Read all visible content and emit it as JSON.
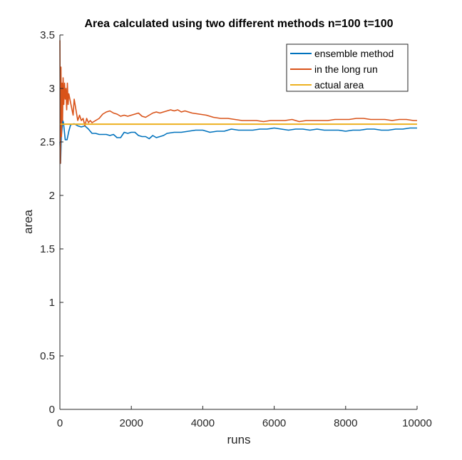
{
  "chart_data": {
    "type": "line",
    "title": "Area calculated using two different methods n=100  t=100",
    "xlabel": "runs",
    "ylabel": "area",
    "xlim": [
      0,
      10000
    ],
    "ylim": [
      0,
      3.5
    ],
    "xticks": [
      0,
      2000,
      4000,
      6000,
      8000,
      10000
    ],
    "xtick_labels": [
      "0",
      "2000",
      "4000",
      "6000",
      "8000",
      "10000"
    ],
    "yticks": [
      0,
      0.5,
      1,
      1.5,
      2,
      2.5,
      3,
      3.5
    ],
    "ytick_labels": [
      "0",
      "0.5",
      "1",
      "1.5",
      "2",
      "2.5",
      "3",
      "3.5"
    ],
    "grid": false,
    "legend_position": "top-right",
    "series": [
      {
        "name": "ensemble method",
        "color": "#0072BD",
        "x": [
          1,
          20,
          40,
          60,
          80,
          100,
          150,
          200,
          250,
          300,
          400,
          500,
          600,
          700,
          800,
          900,
          1000,
          1100,
          1200,
          1300,
          1400,
          1500,
          1600,
          1700,
          1800,
          1900,
          2000,
          2100,
          2200,
          2300,
          2400,
          2500,
          2600,
          2700,
          2800,
          2900,
          3000,
          3200,
          3400,
          3600,
          3800,
          4000,
          4200,
          4400,
          4600,
          4800,
          5000,
          5200,
          5400,
          5600,
          5800,
          6000,
          6200,
          6400,
          6600,
          6800,
          7000,
          7200,
          7400,
          7600,
          7800,
          8000,
          8200,
          8400,
          8600,
          8800,
          9000,
          9200,
          9400,
          9600,
          9800,
          10000
        ],
        "y": [
          2.5,
          2.3,
          2.55,
          2.62,
          2.7,
          2.68,
          2.52,
          2.52,
          2.6,
          2.66,
          2.67,
          2.65,
          2.64,
          2.65,
          2.62,
          2.58,
          2.58,
          2.57,
          2.57,
          2.57,
          2.56,
          2.57,
          2.54,
          2.54,
          2.59,
          2.58,
          2.59,
          2.59,
          2.56,
          2.55,
          2.55,
          2.53,
          2.56,
          2.54,
          2.55,
          2.56,
          2.58,
          2.59,
          2.59,
          2.6,
          2.61,
          2.61,
          2.59,
          2.6,
          2.6,
          2.62,
          2.61,
          2.61,
          2.61,
          2.62,
          2.62,
          2.63,
          2.62,
          2.61,
          2.62,
          2.62,
          2.61,
          2.62,
          2.61,
          2.61,
          2.61,
          2.6,
          2.61,
          2.61,
          2.62,
          2.62,
          2.61,
          2.61,
          2.62,
          2.62,
          2.63,
          2.63
        ]
      },
      {
        "name": "in the long run",
        "color": "#D95319",
        "x": [
          1,
          15,
          30,
          45,
          60,
          75,
          90,
          110,
          130,
          150,
          170,
          190,
          210,
          230,
          250,
          280,
          310,
          340,
          370,
          400,
          450,
          500,
          550,
          600,
          650,
          700,
          750,
          800,
          850,
          900,
          1000,
          1100,
          1200,
          1300,
          1400,
          1500,
          1600,
          1700,
          1800,
          1900,
          2000,
          2100,
          2200,
          2300,
          2400,
          2500,
          2600,
          2700,
          2800,
          2900,
          3000,
          3100,
          3200,
          3300,
          3400,
          3500,
          3700,
          3900,
          4100,
          4300,
          4500,
          4700,
          4900,
          5100,
          5300,
          5500,
          5700,
          5900,
          6100,
          6300,
          6500,
          6700,
          6900,
          7100,
          7300,
          7500,
          7700,
          7900,
          8100,
          8300,
          8500,
          8700,
          8900,
          9100,
          9300,
          9500,
          9700,
          9900,
          10000
        ],
        "y": [
          3.45,
          2.3,
          3.2,
          2.55,
          3.05,
          2.7,
          3.1,
          2.85,
          3.05,
          2.9,
          3.0,
          2.8,
          3.05,
          2.85,
          2.95,
          2.9,
          2.85,
          2.8,
          2.75,
          2.9,
          2.8,
          2.7,
          2.75,
          2.7,
          2.72,
          2.65,
          2.72,
          2.68,
          2.7,
          2.68,
          2.7,
          2.72,
          2.76,
          2.78,
          2.79,
          2.77,
          2.76,
          2.74,
          2.75,
          2.74,
          2.75,
          2.76,
          2.77,
          2.74,
          2.73,
          2.75,
          2.77,
          2.78,
          2.77,
          2.78,
          2.79,
          2.8,
          2.79,
          2.8,
          2.78,
          2.79,
          2.77,
          2.76,
          2.75,
          2.73,
          2.72,
          2.72,
          2.71,
          2.7,
          2.7,
          2.7,
          2.69,
          2.7,
          2.7,
          2.7,
          2.71,
          2.69,
          2.7,
          2.7,
          2.7,
          2.7,
          2.71,
          2.71,
          2.71,
          2.72,
          2.72,
          2.71,
          2.71,
          2.71,
          2.7,
          2.71,
          2.71,
          2.7,
          2.7
        ]
      },
      {
        "name": "actual area",
        "color": "#EDB120",
        "x": [
          0,
          10000
        ],
        "y": [
          2.666,
          2.666
        ]
      }
    ]
  }
}
